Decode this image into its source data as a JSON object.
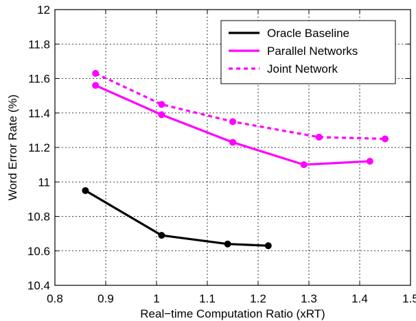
{
  "chart_data": {
    "type": "line",
    "xlabel": "Real−time Computation Ratio (xRT)",
    "ylabel": "Word Error Rate (%)",
    "xlim": [
      0.8,
      1.5
    ],
    "ylim": [
      10.4,
      12
    ],
    "xticks": [
      "0.8",
      "0.9",
      "1",
      "1.1",
      "1.2",
      "1.3",
      "1.4",
      "1.5"
    ],
    "yticks": [
      "10.4",
      "10.6",
      "10.8",
      "11",
      "11.2",
      "11.4",
      "11.6",
      "11.8",
      "12"
    ],
    "grid": true,
    "legend_position": "top-right",
    "series": [
      {
        "name": "Oracle Baseline",
        "color": "#000000",
        "line_style": "solid",
        "x": [
          0.86,
          1.01,
          1.14,
          1.22
        ],
        "y": [
          10.95,
          10.69,
          10.64,
          10.63
        ]
      },
      {
        "name": "Parallel Networks",
        "color": "#ff00ff",
        "line_style": "solid",
        "x": [
          0.88,
          1.01,
          1.15,
          1.29,
          1.42
        ],
        "y": [
          11.56,
          11.39,
          11.23,
          11.1,
          11.12
        ]
      },
      {
        "name": "Joint Network",
        "color": "#ff00ff",
        "line_style": "dashed",
        "x": [
          0.88,
          1.01,
          1.15,
          1.32,
          1.45
        ],
        "y": [
          11.63,
          11.45,
          11.35,
          11.26,
          11.25
        ]
      }
    ]
  }
}
